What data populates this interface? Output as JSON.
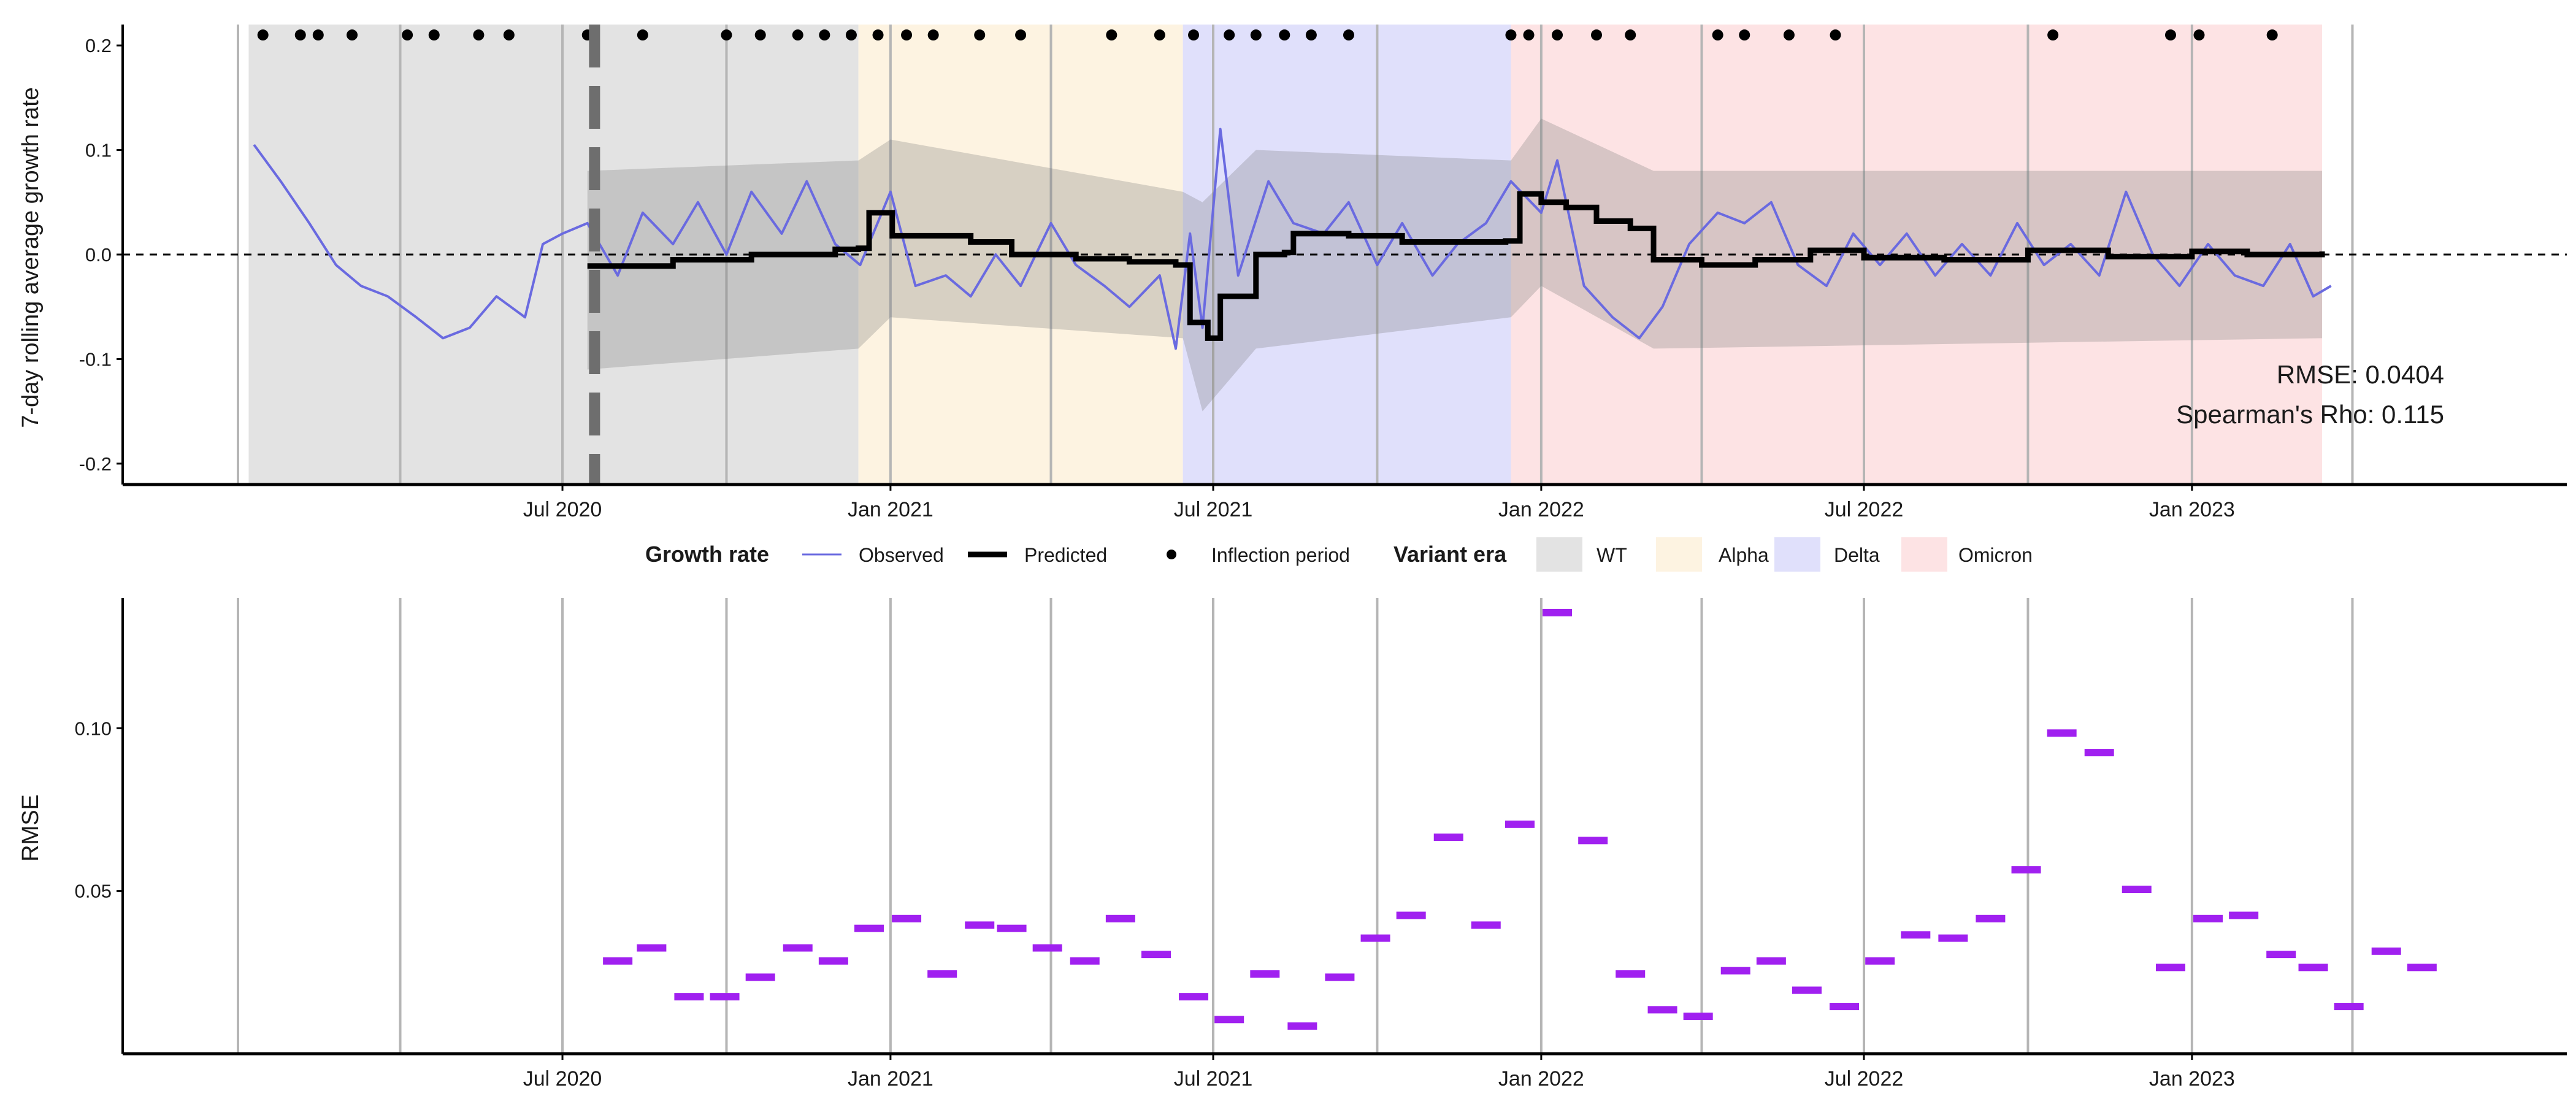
{
  "chart_data": [
    {
      "type": "line",
      "ylabel": "7-day rolling average growth rate",
      "xlabel": "",
      "ylim": [
        -0.22,
        0.22
      ],
      "xlim": [
        "2020-01-01",
        "2023-07-01"
      ],
      "y_ticks": [
        0.2,
        0.1,
        0.0,
        -0.1,
        -0.2
      ],
      "y_tick_labels": [
        "0.2",
        "0.1",
        "0.0",
        "-0.1",
        "-0.2"
      ],
      "x_ticks": [
        "2020-07-01",
        "2021-01-01",
        "2021-07-01",
        "2022-01-01",
        "2022-07-01",
        "2023-01-01"
      ],
      "x_tick_labels": [
        "Jul 2020",
        "Jan 2021",
        "Jul 2021",
        "Jan 2022",
        "Jul 2022",
        "Jan 2023"
      ],
      "monthly_gridlines_every_quarter": [
        "2020-01-01",
        "2020-04-01",
        "2020-07-01",
        "2020-10-01",
        "2021-01-01",
        "2021-04-01",
        "2021-07-01",
        "2021-10-01",
        "2022-01-01",
        "2022-04-01",
        "2022-07-01",
        "2022-10-01",
        "2023-01-01",
        "2023-04-01"
      ],
      "reference_line_y": 0.0,
      "vertical_dashed_line_x": "2020-07-19",
      "variant_eras": [
        {
          "name": "WT",
          "start": "2020-01-07",
          "end": "2020-12-14",
          "color": "#e3e3e3"
        },
        {
          "name": "Alpha",
          "start": "2020-12-14",
          "end": "2021-06-14",
          "color": "#fdf3e1"
        },
        {
          "name": "Delta",
          "start": "2021-06-14",
          "end": "2021-12-15",
          "color": "#e0e0fb"
        },
        {
          "name": "Omicron",
          "start": "2021-12-15",
          "end": "2023-03-15",
          "color": "#fde3e4"
        }
      ],
      "series": [
        {
          "name": "Observed",
          "color": "#6a6ae0",
          "points": [
            [
              "2020-01-10",
              0.105
            ],
            [
              "2020-01-25",
              0.07
            ],
            [
              "2020-02-10",
              0.03
            ],
            [
              "2020-02-25",
              -0.01
            ],
            [
              "2020-03-10",
              -0.03
            ],
            [
              "2020-03-25",
              -0.04
            ],
            [
              "2020-04-10",
              -0.06
            ],
            [
              "2020-04-25",
              -0.08
            ],
            [
              "2020-05-10",
              -0.07
            ],
            [
              "2020-05-25",
              -0.04
            ],
            [
              "2020-06-10",
              -0.06
            ],
            [
              "2020-06-20",
              0.01
            ],
            [
              "2020-07-01",
              0.02
            ],
            [
              "2020-07-15",
              0.03
            ],
            [
              "2020-08-01",
              -0.02
            ],
            [
              "2020-08-15",
              0.04
            ],
            [
              "2020-09-01",
              0.01
            ],
            [
              "2020-09-15",
              0.05
            ],
            [
              "2020-10-01",
              0.0
            ],
            [
              "2020-10-15",
              0.06
            ],
            [
              "2020-11-01",
              0.02
            ],
            [
              "2020-11-15",
              0.07
            ],
            [
              "2020-12-01",
              0.01
            ],
            [
              "2020-12-15",
              -0.01
            ],
            [
              "2021-01-01",
              0.06
            ],
            [
              "2021-01-15",
              -0.03
            ],
            [
              "2021-02-01",
              -0.02
            ],
            [
              "2021-02-15",
              -0.04
            ],
            [
              "2021-03-01",
              0.0
            ],
            [
              "2021-03-15",
              -0.03
            ],
            [
              "2021-04-01",
              0.03
            ],
            [
              "2021-04-15",
              -0.01
            ],
            [
              "2021-05-01",
              -0.03
            ],
            [
              "2021-05-15",
              -0.05
            ],
            [
              "2021-06-01",
              -0.02
            ],
            [
              "2021-06-10",
              -0.09
            ],
            [
              "2021-06-18",
              0.02
            ],
            [
              "2021-06-25",
              -0.07
            ],
            [
              "2021-07-05",
              0.12
            ],
            [
              "2021-07-15",
              -0.02
            ],
            [
              "2021-08-01",
              0.07
            ],
            [
              "2021-08-15",
              0.03
            ],
            [
              "2021-09-01",
              0.02
            ],
            [
              "2021-09-15",
              0.05
            ],
            [
              "2021-10-01",
              -0.01
            ],
            [
              "2021-10-15",
              0.03
            ],
            [
              "2021-11-01",
              -0.02
            ],
            [
              "2021-11-15",
              0.01
            ],
            [
              "2021-12-01",
              0.03
            ],
            [
              "2021-12-15",
              0.07
            ],
            [
              "2022-01-01",
              0.04
            ],
            [
              "2022-01-10",
              0.09
            ],
            [
              "2022-01-25",
              -0.03
            ],
            [
              "2022-02-10",
              -0.06
            ],
            [
              "2022-02-25",
              -0.08
            ],
            [
              "2022-03-10",
              -0.05
            ],
            [
              "2022-03-25",
              0.01
            ],
            [
              "2022-04-10",
              0.04
            ],
            [
              "2022-04-25",
              0.03
            ],
            [
              "2022-05-10",
              0.05
            ],
            [
              "2022-05-25",
              -0.01
            ],
            [
              "2022-06-10",
              -0.03
            ],
            [
              "2022-06-25",
              0.02
            ],
            [
              "2022-07-10",
              -0.01
            ],
            [
              "2022-07-25",
              0.02
            ],
            [
              "2022-08-10",
              -0.02
            ],
            [
              "2022-08-25",
              0.01
            ],
            [
              "2022-09-10",
              -0.02
            ],
            [
              "2022-09-25",
              0.03
            ],
            [
              "2022-10-10",
              -0.01
            ],
            [
              "2022-10-25",
              0.01
            ],
            [
              "2022-11-10",
              -0.02
            ],
            [
              "2022-11-25",
              0.06
            ],
            [
              "2022-12-10",
              0.0
            ],
            [
              "2022-12-25",
              -0.03
            ],
            [
              "2023-01-10",
              0.01
            ],
            [
              "2023-01-25",
              -0.02
            ],
            [
              "2023-02-10",
              -0.03
            ],
            [
              "2023-02-25",
              0.01
            ],
            [
              "2023-03-10",
              -0.04
            ],
            [
              "2023-03-20",
              -0.03
            ]
          ]
        },
        {
          "name": "Predicted",
          "color": "#000000",
          "points": [
            [
              "2020-07-15",
              -0.011
            ],
            [
              "2020-09-01",
              -0.005
            ],
            [
              "2020-10-15",
              0.0
            ],
            [
              "2020-12-01",
              0.005
            ],
            [
              "2020-12-14",
              0.006
            ],
            [
              "2020-12-20",
              0.04
            ],
            [
              "2021-01-01",
              0.04
            ],
            [
              "2021-01-02",
              0.018
            ],
            [
              "2021-02-15",
              0.012
            ],
            [
              "2021-03-10",
              0.0
            ],
            [
              "2021-04-15",
              -0.004
            ],
            [
              "2021-05-15",
              -0.007
            ],
            [
              "2021-06-10",
              -0.01
            ],
            [
              "2021-06-18",
              -0.065
            ],
            [
              "2021-06-28",
              -0.08
            ],
            [
              "2021-07-05",
              -0.04
            ],
            [
              "2021-07-20",
              -0.04
            ],
            [
              "2021-07-25",
              0.0
            ],
            [
              "2021-08-10",
              0.002
            ],
            [
              "2021-08-15",
              0.02
            ],
            [
              "2021-09-15",
              0.018
            ],
            [
              "2021-10-15",
              0.012
            ],
            [
              "2021-11-15",
              0.012
            ],
            [
              "2021-12-12",
              0.013
            ],
            [
              "2021-12-20",
              0.058
            ],
            [
              "2022-01-01",
              0.05
            ],
            [
              "2022-01-15",
              0.045
            ],
            [
              "2022-02-01",
              0.032
            ],
            [
              "2022-02-20",
              0.025
            ],
            [
              "2022-03-05",
              -0.005
            ],
            [
              "2022-04-01",
              -0.01
            ],
            [
              "2022-05-01",
              -0.005
            ],
            [
              "2022-06-01",
              0.004
            ],
            [
              "2022-07-01",
              -0.003
            ],
            [
              "2022-08-15",
              -0.005
            ],
            [
              "2022-10-01",
              0.004
            ],
            [
              "2022-11-15",
              -0.002
            ],
            [
              "2023-01-01",
              0.003
            ],
            [
              "2023-02-01",
              0.0
            ],
            [
              "2023-03-15",
              0.003
            ]
          ],
          "interval": [
            [
              "2020-07-15",
              -0.11,
              0.08
            ],
            [
              "2020-12-14",
              -0.09,
              0.09
            ],
            [
              "2021-01-01",
              -0.06,
              0.11
            ],
            [
              "2021-06-14",
              -0.08,
              0.06
            ],
            [
              "2021-06-25",
              -0.15,
              0.05
            ],
            [
              "2021-07-25",
              -0.09,
              0.1
            ],
            [
              "2021-12-15",
              -0.06,
              0.09
            ],
            [
              "2022-01-01",
              -0.03,
              0.13
            ],
            [
              "2022-03-05",
              -0.09,
              0.08
            ],
            [
              "2023-03-15",
              -0.08,
              0.08
            ]
          ]
        },
        {
          "name": "Inflection period",
          "color": "#000000",
          "marker": "point",
          "y_value": 0.21,
          "dates": [
            "2020-01-15",
            "2020-02-05",
            "2020-02-15",
            "2020-03-05",
            "2020-04-05",
            "2020-04-20",
            "2020-05-15",
            "2020-06-01",
            "2020-07-15",
            "2020-08-15",
            "2020-10-01",
            "2020-10-20",
            "2020-11-10",
            "2020-11-25",
            "2020-12-10",
            "2020-12-25",
            "2021-01-10",
            "2021-01-25",
            "2021-02-20",
            "2021-03-15",
            "2021-05-05",
            "2021-06-01",
            "2021-06-20",
            "2021-07-10",
            "2021-07-25",
            "2021-08-10",
            "2021-08-25",
            "2021-09-15",
            "2021-12-15",
            "2021-12-25",
            "2022-01-10",
            "2022-02-01",
            "2022-02-20",
            "2022-04-10",
            "2022-04-25",
            "2022-05-20",
            "2022-06-15",
            "2022-10-15",
            "2022-12-20",
            "2023-01-05",
            "2023-02-15"
          ]
        }
      ],
      "annotations": [
        "RMSE: 0.0404",
        "Spearman's Rho: 0.115"
      ],
      "legend": {
        "placement": "bottom",
        "growth_rate_title": "Growth rate",
        "observed_label": "Observed",
        "predicted_label": "Predicted",
        "inflection_label": "Inflection period",
        "variant_title": "Variant era",
        "wt_label": "WT",
        "alpha_label": "Alpha",
        "delta_label": "Delta",
        "omicron_label": "Omicron"
      },
      "grid": "vertical quarterly lines"
    },
    {
      "type": "scatter",
      "marker": "horizontal dash",
      "color": "#a020f0",
      "ylabel": "RMSE",
      "xlabel": "",
      "ylim": [
        0.0,
        0.14
      ],
      "xlim": [
        "2020-01-01",
        "2023-07-01"
      ],
      "y_ticks": [
        0.1,
        0.05
      ],
      "y_tick_labels": [
        "0.10",
        "0.05"
      ],
      "x_ticks": [
        "2020-07-01",
        "2021-01-01",
        "2021-07-01",
        "2022-01-01",
        "2022-07-01",
        "2023-01-01"
      ],
      "x_tick_labels": [
        "Jul 2020",
        "Jan 2021",
        "Jul 2021",
        "Jan 2022",
        "Jul 2022",
        "Jan 2023"
      ],
      "grid": "vertical quarterly lines",
      "series": [
        {
          "name": "RMSE",
          "points": [
            [
              "2020-08-01",
              0.0285
            ],
            [
              "2020-08-20",
              0.0325
            ],
            [
              "2020-09-10",
              0.0175
            ],
            [
              "2020-09-30",
              0.0175
            ],
            [
              "2020-10-20",
              0.0235
            ],
            [
              "2020-11-10",
              0.0325
            ],
            [
              "2020-11-30",
              0.0285
            ],
            [
              "2020-12-20",
              0.0385
            ],
            [
              "2021-01-10",
              0.0415
            ],
            [
              "2021-01-30",
              0.0245
            ],
            [
              "2021-02-20",
              0.0395
            ],
            [
              "2021-03-10",
              0.0385
            ],
            [
              "2021-03-30",
              0.0325
            ],
            [
              "2021-04-20",
              0.0285
            ],
            [
              "2021-05-10",
              0.0415
            ],
            [
              "2021-05-30",
              0.0305
            ],
            [
              "2021-06-20",
              0.0175
            ],
            [
              "2021-07-10",
              0.0105
            ],
            [
              "2021-07-30",
              0.0245
            ],
            [
              "2021-08-20",
              0.0085
            ],
            [
              "2021-09-10",
              0.0235
            ],
            [
              "2021-09-30",
              0.0355
            ],
            [
              "2021-10-20",
              0.0425
            ],
            [
              "2021-11-10",
              0.0665
            ],
            [
              "2021-12-01",
              0.0395
            ],
            [
              "2021-12-20",
              0.0705
            ],
            [
              "2022-01-10",
              0.1355
            ],
            [
              "2022-01-30",
              0.0655
            ],
            [
              "2022-02-20",
              0.0245
            ],
            [
              "2022-03-10",
              0.0135
            ],
            [
              "2022-03-30",
              0.0115
            ],
            [
              "2022-04-20",
              0.0255
            ],
            [
              "2022-05-10",
              0.0285
            ],
            [
              "2022-05-30",
              0.0195
            ],
            [
              "2022-06-20",
              0.0145
            ],
            [
              "2022-07-10",
              0.0285
            ],
            [
              "2022-07-30",
              0.0365
            ],
            [
              "2022-08-20",
              0.0355
            ],
            [
              "2022-09-10",
              0.0415
            ],
            [
              "2022-09-30",
              0.0565
            ],
            [
              "2022-10-20",
              0.0985
            ],
            [
              "2022-11-10",
              0.0925
            ],
            [
              "2022-12-01",
              0.0505
            ],
            [
              "2022-12-20",
              0.0265
            ],
            [
              "2023-01-10",
              0.0415
            ],
            [
              "2023-01-30",
              0.0425
            ],
            [
              "2023-02-20",
              0.0305
            ],
            [
              "2023-03-10",
              0.0265
            ],
            [
              "2023-03-30",
              0.0145
            ],
            [
              "2023-04-20",
              0.0315
            ],
            [
              "2023-05-10",
              0.0265
            ]
          ]
        }
      ]
    }
  ]
}
